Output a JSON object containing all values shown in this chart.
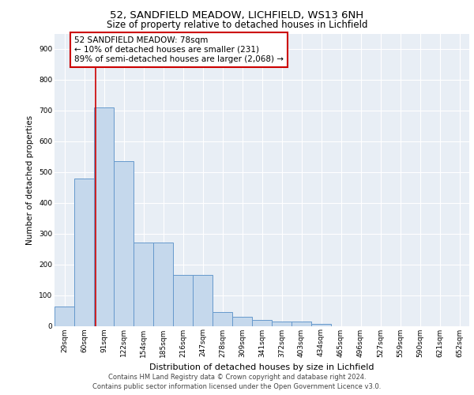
{
  "title1": "52, SANDFIELD MEADOW, LICHFIELD, WS13 6NH",
  "title2": "Size of property relative to detached houses in Lichfield",
  "xlabel": "Distribution of detached houses by size in Lichfield",
  "ylabel": "Number of detached properties",
  "categories": [
    "29sqm",
    "60sqm",
    "91sqm",
    "122sqm",
    "154sqm",
    "185sqm",
    "216sqm",
    "247sqm",
    "278sqm",
    "309sqm",
    "341sqm",
    "372sqm",
    "403sqm",
    "434sqm",
    "465sqm",
    "496sqm",
    "527sqm",
    "559sqm",
    "590sqm",
    "621sqm",
    "652sqm"
  ],
  "values": [
    63,
    480,
    710,
    535,
    270,
    270,
    165,
    165,
    45,
    30,
    20,
    15,
    13,
    7,
    0,
    0,
    0,
    0,
    0,
    0,
    0
  ],
  "bar_color": "#c5d8ec",
  "bar_edge_color": "#6699cc",
  "vline_x": 1.58,
  "vline_color": "#cc0000",
  "annotation_text": "52 SANDFIELD MEADOW: 78sqm\n← 10% of detached houses are smaller (231)\n89% of semi-detached houses are larger (2,068) →",
  "annotation_box_color": "#ffffff",
  "annotation_edge_color": "#cc0000",
  "plot_bg_color": "#e8eef5",
  "footer1": "Contains HM Land Registry data © Crown copyright and database right 2024.",
  "footer2": "Contains public sector information licensed under the Open Government Licence v3.0.",
  "ylim": [
    0,
    950
  ],
  "yticks": [
    0,
    100,
    200,
    300,
    400,
    500,
    600,
    700,
    800,
    900
  ],
  "title1_fontsize": 9.5,
  "title2_fontsize": 8.5,
  "xlabel_fontsize": 8.0,
  "ylabel_fontsize": 7.5,
  "tick_fontsize": 6.5,
  "annotation_fontsize": 7.5,
  "footer_fontsize": 6.0
}
